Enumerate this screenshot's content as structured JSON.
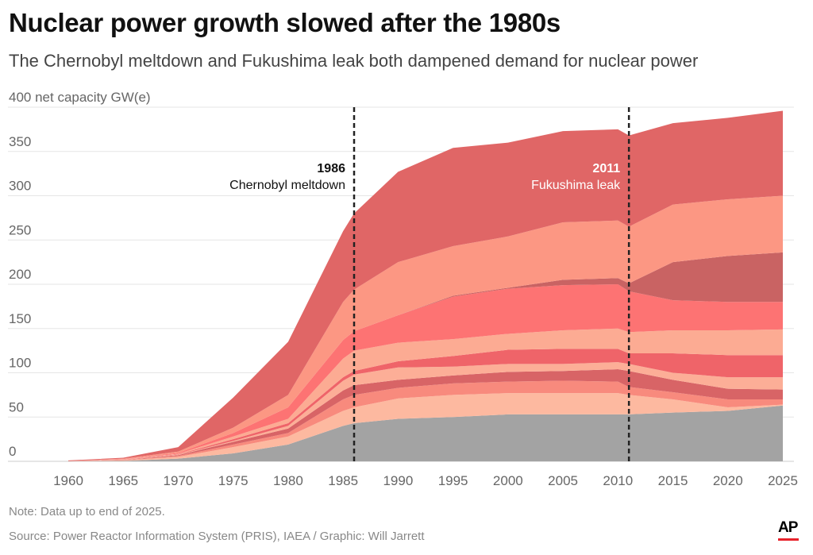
{
  "title": "Nuclear power growth slowed after the 1980s",
  "subtitle": "The Chernobyl meltdown and Fukushima leak both dampened demand for nuclear power",
  "note": "Note: Data up to end of 2025.",
  "source": "Source: Power Reactor Information System (PRIS), IAEA / Graphic: Will Jarrett",
  "logo": "AP",
  "chart_data": {
    "type": "area",
    "stacked": true,
    "ylabel": "net capacity GW(e)",
    "ylim": [
      0,
      400
    ],
    "xlim": [
      1960,
      2025
    ],
    "grid": true,
    "x_ticks": [
      1960,
      1965,
      1970,
      1975,
      1980,
      1985,
      1990,
      1995,
      2000,
      2005,
      2010,
      2015,
      2020,
      2025
    ],
    "y_ticks": [
      0,
      50,
      100,
      150,
      200,
      250,
      300,
      350,
      400
    ],
    "y_top_tick_label": "400 net capacity GW(e)",
    "x": [
      1960,
      1965,
      1970,
      1975,
      1980,
      1985,
      1986,
      1990,
      1995,
      2000,
      2005,
      2010,
      2011,
      2015,
      2020,
      2025
    ],
    "series": [
      {
        "color": "#a3a3a3",
        "values": [
          0,
          0.5,
          3,
          9,
          19,
          40,
          43,
          48,
          50,
          53,
          53,
          53,
          53,
          55,
          57,
          63
        ]
      },
      {
        "color": "#fdb9a0",
        "values": [
          0,
          0.5,
          2,
          7,
          9,
          17,
          18,
          23,
          25,
          24,
          24,
          24,
          22,
          15,
          4,
          1
        ]
      },
      {
        "color": "#f88a7d",
        "values": [
          0,
          0.3,
          1,
          3,
          4,
          13,
          14,
          12,
          13,
          13,
          14,
          13,
          9,
          8,
          9,
          6
        ]
      },
      {
        "color": "#d86466",
        "values": [
          0,
          0.3,
          1,
          3,
          5,
          10,
          11,
          9,
          9,
          11,
          11,
          14,
          18,
          14,
          12,
          11
        ]
      },
      {
        "color": "#fcae97",
        "values": [
          0.1,
          0.2,
          0.5,
          1,
          3,
          11,
          12,
          14,
          10,
          9,
          8,
          8,
          8,
          8,
          13,
          14
        ]
      },
      {
        "color": "#ef6469",
        "values": [
          0,
          0.2,
          0.5,
          2,
          3,
          4,
          4,
          7,
          12,
          16,
          17,
          15,
          12,
          22,
          25,
          25
        ]
      },
      {
        "color": "#fcab93",
        "values": [
          0,
          0.2,
          0.5,
          3,
          5,
          21,
          23,
          21,
          19,
          18,
          21,
          23,
          24,
          26,
          28,
          29
        ]
      },
      {
        "color": "#fd7373",
        "values": [
          0.1,
          0.3,
          1,
          4,
          13,
          21,
          22,
          31,
          48,
          51,
          51,
          50,
          46,
          34,
          32,
          31
        ]
      },
      {
        "color": "#c96363",
        "values": [
          0,
          0,
          0,
          0,
          0,
          0,
          0,
          0,
          1,
          1,
          6,
          7,
          9,
          43,
          52,
          56
        ]
      },
      {
        "color": "#fc9783",
        "values": [
          0.1,
          0.5,
          1.5,
          6,
          14,
          43,
          47,
          60,
          56,
          58,
          65,
          65,
          64,
          65,
          64,
          64
        ]
      },
      {
        "color": "#e06666",
        "values": [
          0.7,
          1,
          5,
          34,
          60,
          80,
          86,
          102,
          111,
          106,
          103,
          103,
          103,
          92,
          92,
          96
        ]
      }
    ],
    "annotations": [
      {
        "year": 1986,
        "label_year": "1986",
        "label": "Chernobyl meltdown",
        "text_color": "#111111"
      },
      {
        "year": 2011,
        "label_year": "2011",
        "label": "Fukushima leak",
        "text_color": "#ffffff"
      }
    ]
  }
}
